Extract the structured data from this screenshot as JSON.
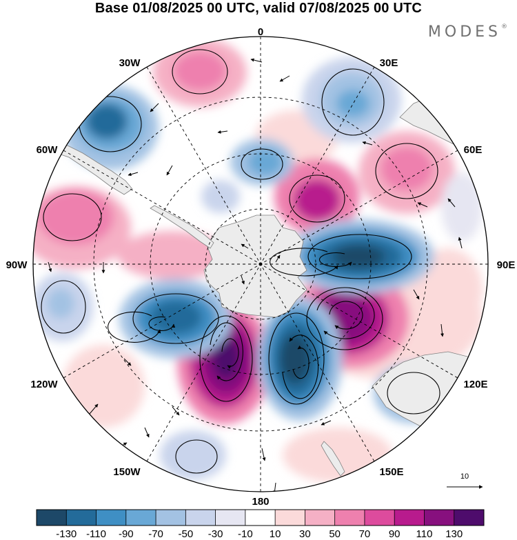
{
  "title": "Base 01/08/2025 00 UTC, valid 07/08/2025 00 UTC",
  "brand": "MODES",
  "brand_mark": "®",
  "longitude_labels": {
    "lon_0": "0",
    "lon_30e": "30E",
    "lon_60e": "60E",
    "lon_90e": "90E",
    "lon_120e": "120E",
    "lon_150e": "150E",
    "lon_180": "180",
    "lon_150w": "150W",
    "lon_120w": "120W",
    "lon_90w": "90W",
    "lon_60w": "60W",
    "lon_30w": "30W"
  },
  "reference_vector_label": "10",
  "colorbar": {
    "labels": [
      "-130",
      "-110",
      "-90",
      "-70",
      "-50",
      "-30",
      "-10",
      "10",
      "30",
      "50",
      "70",
      "90",
      "110",
      "130"
    ],
    "colors": [
      "#1d4868",
      "#236b9a",
      "#3f8fc4",
      "#69a8d6",
      "#a3c2e3",
      "#c9d4ec",
      "#e6e6f2",
      "#ffffff",
      "#fbdada",
      "#f5b0c5",
      "#ee80ae",
      "#dd4b9d",
      "#b81b8d",
      "#87107e",
      "#4e0c6c"
    ]
  },
  "anomaly_centres": [
    {
      "region": "near 150W-170E",
      "value_class": "110 to 130"
    },
    {
      "region": "near 170E",
      "value_class": "-130 to -110"
    },
    {
      "region": "near 110E",
      "value_class": "110 to 130"
    },
    {
      "region": "near 90E",
      "value_class": "-130 to -110"
    },
    {
      "region": "near 125W",
      "value_class": "-110 to -90"
    }
  ]
}
